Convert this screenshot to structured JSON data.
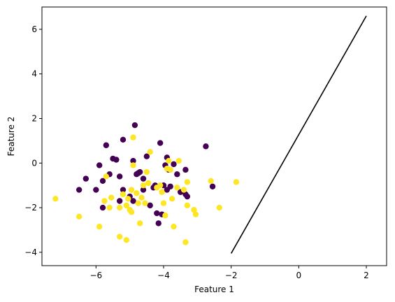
{
  "chart_data": {
    "type": "scatter",
    "title": "",
    "xlabel": "Feature 1",
    "ylabel": "Feature 2",
    "xlim": [
      -7.6,
      2.6
    ],
    "ylim": [
      -4.6,
      7.0
    ],
    "xticks": [
      -6,
      -4,
      -2,
      0,
      2
    ],
    "yticks": [
      -4,
      -2,
      0,
      2,
      4,
      6
    ],
    "grid": false,
    "colors": {
      "class_0": "#440154",
      "class_1": "#fde725",
      "line": "#000000"
    },
    "series": [
      {
        "points": [
          [
            -6.5,
            -1.2
          ],
          [
            -6.3,
            -0.7
          ],
          [
            -6.0,
            -1.2
          ],
          [
            -5.9,
            -0.1
          ],
          [
            -5.8,
            -0.8
          ],
          [
            -5.7,
            0.8
          ],
          [
            -5.6,
            -0.5
          ],
          [
            -5.5,
            0.2
          ],
          [
            -5.4,
            0.15
          ],
          [
            -5.3,
            -0.6
          ],
          [
            -5.2,
            -1.2
          ],
          [
            -5.2,
            1.05
          ],
          [
            -5.0,
            -1.5
          ],
          [
            -4.9,
            0.1
          ],
          [
            -4.85,
            1.7
          ],
          [
            -4.8,
            -0.5
          ],
          [
            -4.75,
            -0.45
          ],
          [
            -4.7,
            -0.4
          ],
          [
            -4.6,
            -0.7
          ],
          [
            -4.5,
            0.3
          ],
          [
            -4.4,
            -1.9
          ],
          [
            -4.3,
            -1.1
          ],
          [
            -4.25,
            -1.0
          ],
          [
            -4.2,
            -2.25
          ],
          [
            -4.15,
            -2.7
          ],
          [
            -4.1,
            0.9
          ],
          [
            -4.05,
            -2.3
          ],
          [
            -4.0,
            -1.0
          ],
          [
            -3.95,
            -0.1
          ],
          [
            -3.9,
            0.25
          ],
          [
            -3.85,
            -0.3
          ],
          [
            -3.8,
            -1.05
          ],
          [
            -3.7,
            -0.05
          ],
          [
            -3.6,
            -0.5
          ],
          [
            -3.5,
            -1.3
          ],
          [
            -3.35,
            -0.3
          ],
          [
            -3.3,
            -1.5
          ],
          [
            -2.75,
            0.75
          ],
          [
            -2.55,
            -1.05
          ],
          [
            -5.8,
            -2.0
          ],
          [
            -5.3,
            -1.7
          ],
          [
            -4.9,
            -1.7
          ],
          [
            -4.6,
            -1.2
          ],
          [
            -3.9,
            -1.2
          ],
          [
            -3.35,
            -1.4
          ]
        ]
      },
      {
        "points": [
          [
            -7.2,
            -1.6
          ],
          [
            -6.5,
            -2.4
          ],
          [
            -5.9,
            -2.85
          ],
          [
            -5.75,
            -1.7
          ],
          [
            -5.7,
            -0.6
          ],
          [
            -5.6,
            -2.0
          ],
          [
            -5.3,
            -2.0
          ],
          [
            -5.3,
            -3.3
          ],
          [
            -5.2,
            -1.4
          ],
          [
            -5.1,
            -1.9
          ],
          [
            -5.1,
            -3.45
          ],
          [
            -5.05,
            -1.6
          ],
          [
            -5.0,
            -2.1
          ],
          [
            -4.95,
            -2.2
          ],
          [
            -4.95,
            -1.2
          ],
          [
            -4.9,
            -0.1
          ],
          [
            -4.9,
            1.15
          ],
          [
            -4.8,
            -1.35
          ],
          [
            -4.75,
            -1.8
          ],
          [
            -4.7,
            -2.7
          ],
          [
            -4.6,
            -1.0
          ],
          [
            -4.55,
            -1.8
          ],
          [
            -4.5,
            -0.4
          ],
          [
            -4.45,
            -0.9
          ],
          [
            -4.4,
            0.5
          ],
          [
            -4.2,
            -1.1
          ],
          [
            -4.1,
            -1.0
          ],
          [
            -4.05,
            -1.3
          ],
          [
            -4.0,
            -1.8
          ],
          [
            -3.95,
            -2.35
          ],
          [
            -3.9,
            -0.25
          ],
          [
            -3.85,
            0.1
          ],
          [
            -3.8,
            -0.3
          ],
          [
            -3.75,
            -1.6
          ],
          [
            -3.7,
            -2.85
          ],
          [
            -3.6,
            -1.1
          ],
          [
            -3.55,
            0.1
          ],
          [
            -3.4,
            -1.2
          ],
          [
            -3.35,
            -3.55
          ],
          [
            -3.3,
            -1.9
          ],
          [
            -3.3,
            -0.85
          ],
          [
            -3.1,
            -2.1
          ],
          [
            -3.05,
            -2.3
          ],
          [
            -2.6,
            -0.8
          ],
          [
            -2.35,
            -2.0
          ],
          [
            -1.85,
            -0.85
          ],
          [
            -5.55,
            -1.55
          ],
          [
            -4.65,
            -1.55
          ]
        ]
      }
    ],
    "line": {
      "x": [
        -2.0,
        2.0
      ],
      "y": [
        -4.05,
        6.6
      ]
    }
  }
}
